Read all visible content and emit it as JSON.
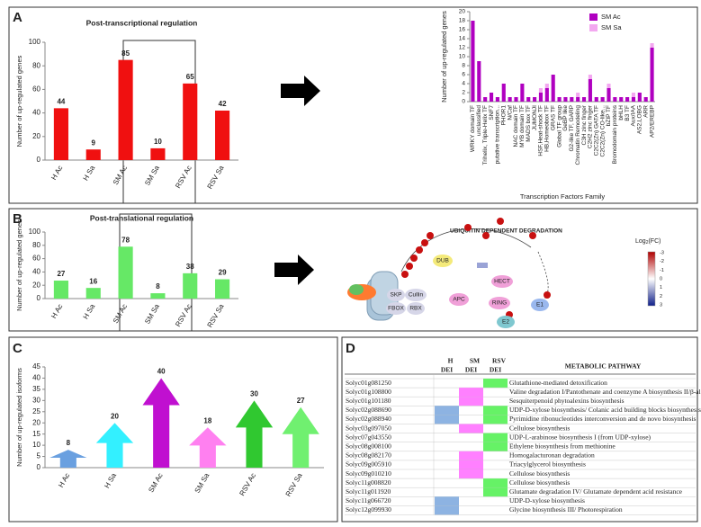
{
  "panels": [
    "A",
    "B",
    "C",
    "D"
  ],
  "chart_data": [
    {
      "type": "bar",
      "title": "Post-transcriptional regulation",
      "ylabel": "Number of up-regulated genes",
      "categories": [
        "H Ac",
        "H Sa",
        "SM Ac",
        "SM Sa",
        "RSV Ac",
        "RSV Sa"
      ],
      "values": [
        44,
        9,
        85,
        10,
        65,
        42
      ],
      "color": "#f01010",
      "ylim": [
        0,
        100
      ],
      "yticks": [
        0,
        20,
        40,
        60,
        80,
        100
      ]
    },
    {
      "type": "stacked_bar",
      "xlabel": "Transcription Factors Family",
      "ylabel": "Number of up-regulated genes",
      "categories": [
        "WRKY domain TF",
        "unclassified",
        "Trihelix, Triple-Helix TF",
        "SNF7",
        "putative transcription...",
        "PHOR1",
        "N/Caf",
        "NAC domain TF",
        "MYB domain TF",
        "MADS box TF",
        "JUMONJI",
        "HSF,Heat-shock TF",
        "HB,Homeobox TF",
        "GRAS TF",
        "Global TF group",
        "GeBP like",
        "G2-like TF, GARP",
        "Chromatin Remodeling",
        "C3H zinc finger",
        "C2H2 zinc finger",
        "C2C2(Zn) GATA TF",
        "C2C2(Zn) CO-like...",
        "bZIP TF",
        "Bromodomain proteins",
        "bHLH",
        "B3 TF",
        "Aux/IAA",
        "AS2,LOBG",
        "ARR",
        "AP2/EREBP"
      ],
      "series": [
        {
          "name": "SM Ac",
          "color": "#b000c0",
          "values": [
            18,
            9,
            1,
            2,
            1,
            4,
            1,
            1,
            4,
            1,
            1,
            2,
            3,
            6,
            1,
            1,
            1,
            1,
            1,
            5,
            1,
            1,
            3,
            1,
            1,
            1,
            1,
            2,
            1,
            12
          ]
        },
        {
          "name": "SM Sa",
          "color": "#f3a8f0",
          "values": [
            0,
            0,
            0,
            0,
            0,
            0,
            0,
            0,
            0,
            0,
            0,
            1,
            1,
            0,
            0,
            0,
            0,
            1,
            0,
            1,
            0,
            0,
            1,
            0,
            0,
            0,
            1,
            0,
            0,
            1
          ]
        }
      ],
      "ylim": [
        0,
        20
      ],
      "yticks": [
        0,
        2,
        4,
        6,
        8,
        10,
        12,
        14,
        16,
        18,
        20
      ],
      "legend": "upper right"
    },
    {
      "type": "bar",
      "title": "Post-translational regulation",
      "ylabel": "Number of up-regulated genes",
      "categories": [
        "H Ac",
        "H Sa",
        "SM Ac",
        "SM Sa",
        "RSV Ac",
        "RSV Sa"
      ],
      "values": [
        27,
        16,
        78,
        8,
        38,
        29
      ],
      "color": "#66e866",
      "ylim": [
        0,
        100
      ],
      "yticks": [
        0,
        20,
        40,
        60,
        80,
        100
      ]
    },
    {
      "type": "arrow",
      "ylabel": "Number of up-regulated isoforms",
      "categories": [
        "H Ac",
        "H Sa",
        "SM Ac",
        "SM Sa",
        "RSV Ac",
        "RSV Sa"
      ],
      "values": [
        8,
        20,
        40,
        18,
        30,
        27
      ],
      "colors": [
        "#6aa0e0",
        "#33f0ff",
        "#c010d0",
        "#ff80f0",
        "#30c830",
        "#70f070"
      ],
      "ylim": [
        0,
        45
      ],
      "yticks": [
        0,
        5,
        10,
        15,
        20,
        25,
        30,
        35,
        40,
        45
      ]
    }
  ],
  "diagram": {
    "title": "UBIQUITIN DEPENDENT DEGRADATION",
    "legend_title": "Log",
    "legend_sub": "2",
    "legend_tail": "(FC)",
    "legend_ticks": [
      "-3",
      "-2",
      "-1",
      "0",
      "1",
      "2",
      "3"
    ],
    "nodes": [
      "DUB",
      "SKP",
      "Cullin",
      "FBOX",
      "RBX",
      "APC",
      "HECT",
      "RING",
      "E1",
      "E2"
    ]
  },
  "table": {
    "columns": [
      [
        "H",
        "DEI"
      ],
      [
        "SM",
        "DEI"
      ],
      [
        "RSV",
        "DEI"
      ]
    ],
    "pathway_header": "METABOLIC PATHWAY",
    "colors": [
      "#8db3e2",
      "#ff80ff",
      "#66f266"
    ],
    "rows": [
      {
        "gene": "Solyc01g081250",
        "de": [
          0,
          0,
          1
        ],
        "pathway": "Glutathione-mediated detoxification"
      },
      {
        "gene": "Solyc01g108800",
        "de": [
          0,
          1,
          0
        ],
        "pathway": "Valine degradation I/Pantothenate and coenzyme A biosynthesis II/β-alanine biosynthesis II"
      },
      {
        "gene": "Solyc01g101180",
        "de": [
          0,
          1,
          0
        ],
        "pathway": "Sesquiterpenoid phytoalexins biosynthesis"
      },
      {
        "gene": "Solyc02g088690",
        "de": [
          1,
          0,
          1
        ],
        "pathway": "UDP-D-xylose biosynthesis/ Colanic acid building blocks biosynthesis"
      },
      {
        "gene": "Solyc02g088940",
        "de": [
          1,
          0,
          1
        ],
        "pathway": "Pyrimidine ribonucleotides interconversion and de novo biosynthesis"
      },
      {
        "gene": "Solyc03g097050",
        "de": [
          0,
          1,
          0
        ],
        "pathway": "Cellulose biosynthesis"
      },
      {
        "gene": "Solyc07g043550",
        "de": [
          0,
          0,
          1
        ],
        "pathway": "UDP-L-arabinose biosynthesis I (from UDP-xylose)"
      },
      {
        "gene": "Solyc08g008100",
        "de": [
          0,
          0,
          1
        ],
        "pathway": "Ethylene biosynthesis from methionine"
      },
      {
        "gene": "Solyc08g082170",
        "de": [
          0,
          1,
          0
        ],
        "pathway": "Homogalacturonan degradation"
      },
      {
        "gene": "Solyc09g005910",
        "de": [
          0,
          1,
          0
        ],
        "pathway": "Triacylglycerol biosynthesis"
      },
      {
        "gene": "Solyc09g010210",
        "de": [
          0,
          1,
          0
        ],
        "pathway": "Cellulose biosynthesis"
      },
      {
        "gene": "Solyc11g008820",
        "de": [
          0,
          0,
          1
        ],
        "pathway": "Cellulose biosynthesis"
      },
      {
        "gene": "Solyc11g011920",
        "de": [
          0,
          0,
          1
        ],
        "pathway": "Glutamate degradation IV/ Glutamate dependent acid resistance"
      },
      {
        "gene": "Solyc11g066720",
        "de": [
          1,
          0,
          0
        ],
        "pathway": "UDP-D-xylose biosynthesis"
      },
      {
        "gene": "Solyc12g099930",
        "de": [
          1,
          0,
          0
        ],
        "pathway": "Glycine biosynthesis III/ Photorespiration"
      }
    ]
  }
}
